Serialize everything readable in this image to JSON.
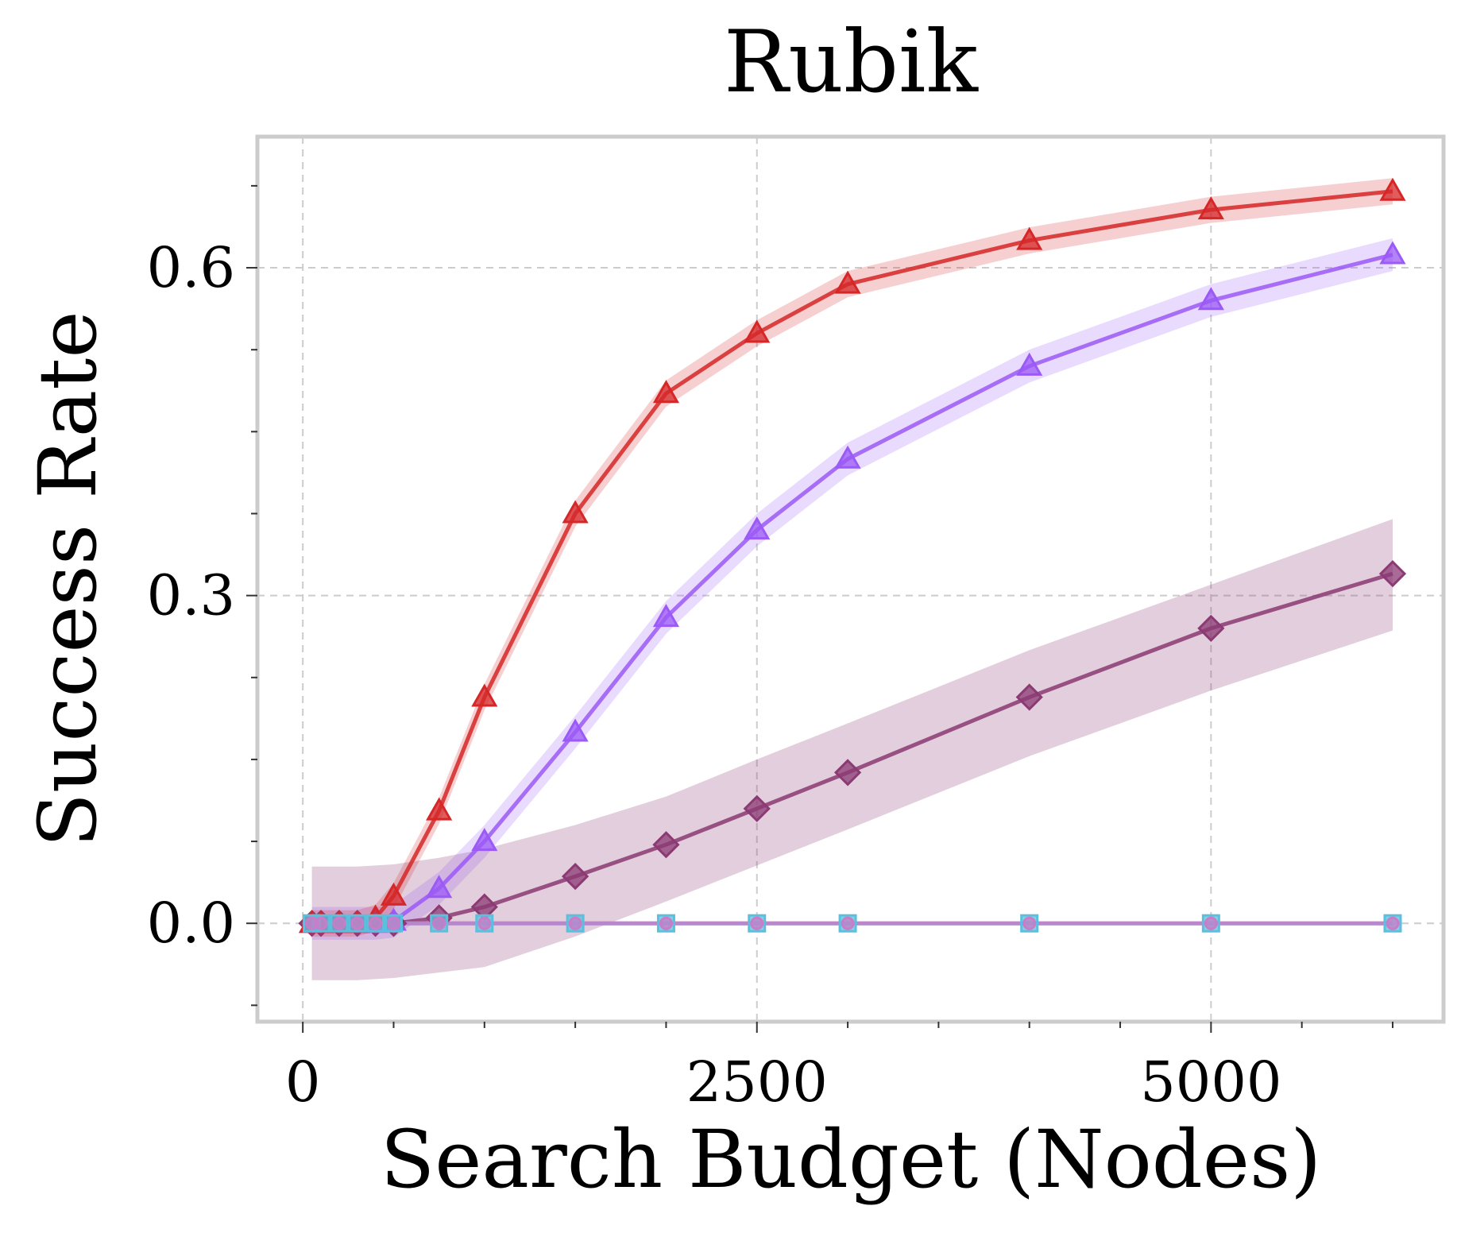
{
  "chart_data": {
    "type": "line",
    "title": "Rubik",
    "xlabel": "Search Budget (Nodes)",
    "ylabel": "Success Rate",
    "xlim": [
      -250,
      6280
    ],
    "ylim": [
      -0.09,
      0.72
    ],
    "xticks": [
      0,
      2500,
      5000
    ],
    "xtick_labels": [
      "0",
      "2500",
      "5000"
    ],
    "yticks": [
      0.0,
      0.3,
      0.6
    ],
    "ytick_labels": [
      "0.0",
      "0.3",
      "0.6"
    ],
    "grid": true,
    "legend": "none",
    "series": [
      {
        "color": "#d62728",
        "marker": "triangle",
        "x": [
          50,
          100,
          200,
          300,
          400,
          500,
          750,
          1000,
          1500,
          2000,
          2500,
          3000,
          4000,
          5000,
          6000
        ],
        "y": [
          0.0,
          0.0,
          0.0,
          0.0,
          0.005,
          0.025,
          0.103,
          0.207,
          0.375,
          0.485,
          0.54,
          0.585,
          0.625,
          0.653,
          0.67
        ],
        "band": 0.012
      },
      {
        "color": "#9b59f6",
        "marker": "triangle",
        "x": [
          50,
          100,
          200,
          300,
          400,
          500,
          750,
          1000,
          1500,
          2000,
          2500,
          3000,
          4000,
          5000,
          6000
        ],
        "y": [
          0.0,
          0.0,
          0.0,
          0.0,
          0.0,
          0.002,
          0.032,
          0.075,
          0.175,
          0.28,
          0.36,
          0.425,
          0.51,
          0.57,
          0.612
        ],
        "band": 0.015
      },
      {
        "color": "#8b3a73",
        "marker": "diamond",
        "x": [
          50,
          100,
          200,
          300,
          400,
          500,
          750,
          1000,
          1500,
          2000,
          2500,
          3000,
          4000,
          5000,
          6000
        ],
        "y": [
          0.0,
          0.0,
          0.0,
          0.0,
          0.0,
          0.0,
          0.005,
          0.015,
          0.043,
          0.072,
          0.105,
          0.138,
          0.207,
          0.27,
          0.32
        ],
        "band_lower": [
          -0.052,
          -0.052,
          -0.052,
          -0.052,
          -0.051,
          -0.05,
          -0.045,
          -0.04,
          -0.012,
          0.02,
          0.053,
          0.086,
          0.153,
          0.213,
          0.268
        ],
        "band_upper": [
          0.052,
          0.052,
          0.052,
          0.052,
          0.053,
          0.054,
          0.06,
          0.068,
          0.09,
          0.116,
          0.15,
          0.183,
          0.25,
          0.31,
          0.37
        ]
      },
      {
        "color": "#5bc0de",
        "marker": "square",
        "x": [
          50,
          100,
          200,
          300,
          400,
          500,
          750,
          1000,
          1500,
          2000,
          2500,
          3000,
          4000,
          5000,
          6000
        ],
        "y": [
          0,
          0,
          0,
          0,
          0,
          0,
          0,
          0,
          0,
          0,
          0,
          0,
          0,
          0,
          0
        ]
      },
      {
        "color": "#c77dc7",
        "marker": "circle",
        "x": [
          50,
          100,
          200,
          300,
          400,
          500,
          750,
          1000,
          1500,
          2000,
          2500,
          3000,
          4000,
          5000,
          6000
        ],
        "y": [
          0,
          0,
          0,
          0,
          0,
          0,
          0,
          0,
          0,
          0,
          0,
          0,
          0,
          0,
          0
        ]
      }
    ]
  }
}
